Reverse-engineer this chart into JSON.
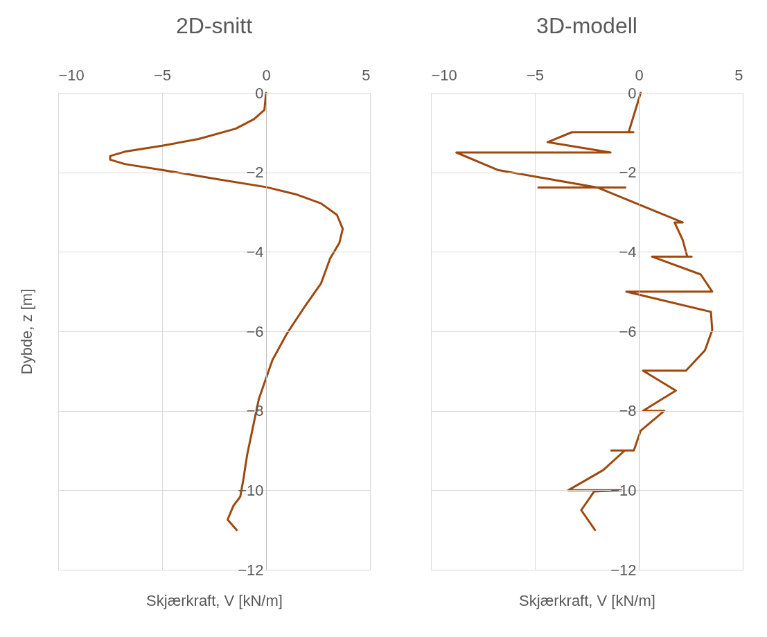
{
  "chart_data": [
    {
      "type": "line",
      "title": "2D-snitt",
      "xlabel": "Skjærkraft, V [kN/m]",
      "ylabel": "Dybde, z [m]",
      "xlim": [
        -10,
        5
      ],
      "xticks": [
        -10,
        -5,
        0,
        5
      ],
      "ylim": [
        -12,
        0
      ],
      "yticks": [
        0,
        -2,
        -4,
        -6,
        -8,
        -10,
        -12
      ],
      "grid": true,
      "series": [
        {
          "color": "#9e480e",
          "x": [
            0,
            -0.08,
            -0.58,
            -1.46,
            -3.24,
            -5.0,
            -6.8,
            -7.5,
            -7.5,
            -6.8,
            -5.0,
            -2.35,
            0,
            1.42,
            2.64,
            3.41,
            3.69,
            3.53,
            3.08,
            2.64,
            1.86,
            1.2,
            0.98,
            0.31,
            -0.08,
            -0.35,
            -0.63,
            -0.91,
            -1.08,
            -1.24,
            -1.57,
            -1.85,
            -1.41
          ],
          "values": [
            0,
            -0.43,
            -0.66,
            -0.9,
            -1.16,
            -1.33,
            -1.48,
            -1.59,
            -1.68,
            -1.79,
            -1.94,
            -2.17,
            -2.37,
            -2.55,
            -2.78,
            -3.07,
            -3.42,
            -3.77,
            -4.17,
            -4.8,
            -5.38,
            -5.9,
            -6.08,
            -6.72,
            -7.3,
            -7.71,
            -8.41,
            -9.11,
            -9.69,
            -10.16,
            -10.39,
            -10.74,
            -11.0
          ]
        }
      ]
    },
    {
      "type": "line",
      "title": "3D-modell",
      "xlabel": "Skjærkraft, V [kN/m]",
      "xlim": [
        -10,
        5
      ],
      "xticks": [
        -10,
        -5,
        0,
        5
      ],
      "ylim": [
        -12,
        0
      ],
      "yticks": [
        0,
        -2,
        -4,
        -6,
        -8,
        -10,
        -12
      ],
      "grid": true,
      "series": [
        {
          "color": "#9e480e",
          "x": [
            0.09,
            -0.49,
            -0.26,
            -3.22,
            -4.39,
            -1.36,
            -8.78,
            -6.79,
            -2.0,
            -4.83,
            -0.65,
            -2.0,
            2.11,
            1.72,
            2.11,
            2.33,
            2.54,
            0.63,
            2.98,
            3.53,
            -0.6,
            3.47,
            3.53,
            3.18,
            2.27,
            0.2,
            1.78,
            0.2,
            1.23,
            0.09,
            -0.24,
            -1.33,
            -0.68,
            -1.71,
            -3.4,
            -0.84,
            -2.15,
            -2.77,
            -2.11
          ],
          "values": [
            0,
            -0.99,
            -0.99,
            -0.99,
            -1.24,
            -1.5,
            -1.5,
            -1.94,
            -2.38,
            -2.38,
            -2.38,
            -2.38,
            -3.26,
            -3.26,
            -3.7,
            -4.12,
            -4.12,
            -4.12,
            -4.57,
            -5.0,
            -5.0,
            -5.51,
            -5.97,
            -6.48,
            -6.99,
            -6.99,
            -7.49,
            -8.0,
            -8.0,
            -8.5,
            -9.0,
            -9.0,
            -9.0,
            -9.49,
            -10.0,
            -10.0,
            -10.03,
            -10.5,
            -11.0
          ]
        }
      ]
    }
  ]
}
